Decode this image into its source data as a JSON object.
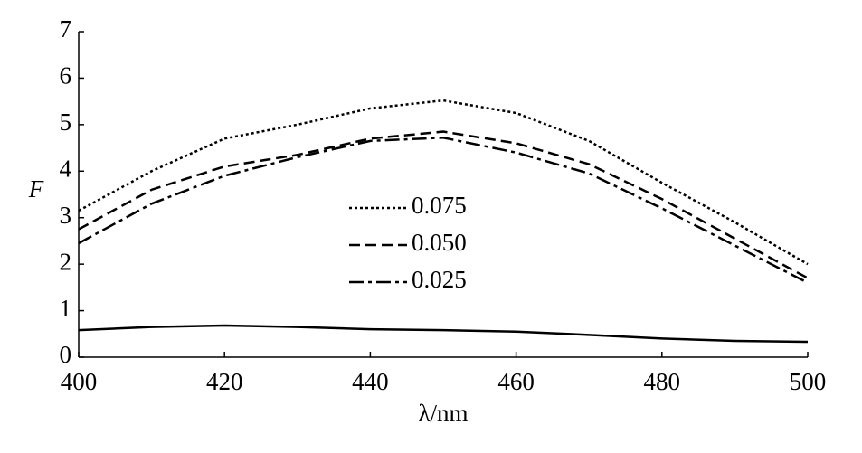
{
  "chart_data": {
    "type": "line",
    "x_label": "λ/nm",
    "y_label": "F",
    "x": [
      400,
      410,
      420,
      430,
      440,
      450,
      460,
      470,
      480,
      490,
      500
    ],
    "series": [
      {
        "name": "0.075",
        "color": "#000000",
        "dash": "dotted",
        "values": [
          3.15,
          4.0,
          4.7,
          5.0,
          5.35,
          5.52,
          5.25,
          4.65,
          3.75,
          2.9,
          2.0
        ]
      },
      {
        "name": "0.050",
        "color": "#000000",
        "dash": "dashed",
        "values": [
          2.75,
          3.6,
          4.1,
          4.35,
          4.7,
          4.85,
          4.6,
          4.15,
          3.4,
          2.55,
          1.7
        ]
      },
      {
        "name": "0.025",
        "color": "#000000",
        "dash": "dashdot",
        "values": [
          2.45,
          3.3,
          3.9,
          4.3,
          4.65,
          4.72,
          4.4,
          3.95,
          3.2,
          2.4,
          1.6
        ]
      },
      {
        "color": "#000000",
        "dash": "solid",
        "values": [
          0.58,
          0.65,
          0.68,
          0.65,
          0.6,
          0.58,
          0.55,
          0.48,
          0.4,
          0.35,
          0.33
        ]
      }
    ],
    "xlim": [
      400,
      500
    ],
    "xticks": [
      400,
      420,
      440,
      460,
      480,
      500
    ],
    "ylim": [
      0,
      7
    ],
    "yticks": [
      0,
      1,
      2,
      3,
      4,
      5,
      6,
      7
    ],
    "grid": false
  }
}
